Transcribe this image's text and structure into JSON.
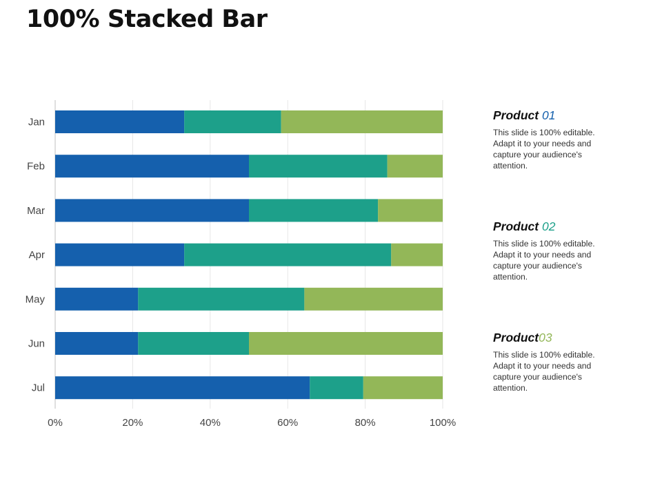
{
  "title": "100% Stacked Bar",
  "colors": {
    "series1": "#1560ad",
    "series2": "#1da08a",
    "series3": "#93b758",
    "grid": "#e6e6e6",
    "axis": "#bfbfbf"
  },
  "legend": [
    {
      "name": "Product ",
      "number": "01",
      "color": "#1560ad",
      "description": "This slide is 100% editable. Adapt it to your needs and capture your audience's attention."
    },
    {
      "name": "Product ",
      "number": "02",
      "color": "#1da08a",
      "description": "This slide is 100% editable. Adapt it to your needs and capture your audience's attention."
    },
    {
      "name": "Product",
      "number": "03",
      "color": "#93b758",
      "description": "This slide is 100% editable. Adapt it to your needs and capture your audience's attention."
    }
  ],
  "chart_data": {
    "type": "bar",
    "orientation": "horizontal",
    "stacked": "percent",
    "title": "100% Stacked Bar",
    "categories": [
      "Jan",
      "Feb",
      "Mar",
      "Apr",
      "May",
      "Jun",
      "Jul"
    ],
    "series": [
      {
        "name": "Product 01",
        "values": [
          33.3,
          50.0,
          50.0,
          33.3,
          21.4,
          21.4,
          65.7
        ]
      },
      {
        "name": "Product 02",
        "values": [
          25.0,
          35.7,
          33.3,
          53.4,
          42.9,
          28.6,
          13.8
        ]
      },
      {
        "name": "Product 03",
        "values": [
          41.7,
          14.3,
          16.7,
          13.3,
          35.7,
          50.0,
          20.5
        ]
      }
    ],
    "xlim": [
      0,
      100
    ],
    "xticks": [
      "0%",
      "20%",
      "40%",
      "60%",
      "80%",
      "100%"
    ],
    "xlabel": "",
    "ylabel": "",
    "grid": true,
    "legend_position": "right"
  }
}
